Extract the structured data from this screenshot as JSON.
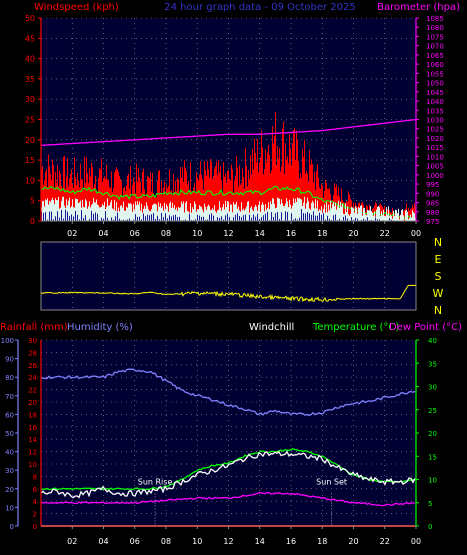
{
  "chart_data": [
    {
      "type": "line",
      "title": "24 hour graph data - 09 October 2025",
      "left_label": "Windspeed (kph)",
      "right_label": "Barometer (hpa)",
      "y_left": {
        "min": 0,
        "max": 50,
        "ticks": [
          0,
          5,
          10,
          15,
          20,
          25,
          30,
          35,
          40,
          45,
          50
        ]
      },
      "y_right": {
        "min": 975,
        "max": 1085,
        "ticks": [
          975,
          980,
          985,
          990,
          995,
          1000,
          1005,
          1010,
          1015,
          1020,
          1025,
          1030,
          1035,
          1040,
          1045,
          1050,
          1055,
          1060,
          1065,
          1070,
          1075,
          1080,
          1085
        ]
      },
      "x_tick_labels": [
        "02",
        "04",
        "06",
        "08",
        "10",
        "12",
        "14",
        "16",
        "18",
        "20",
        "22",
        "00"
      ],
      "series": [
        {
          "key": "gust",
          "color": "#ff0000",
          "x": [
            0,
            1,
            2,
            3,
            4,
            5,
            6,
            7,
            8,
            9,
            10,
            11,
            12,
            13,
            14,
            15,
            16,
            17,
            18,
            19,
            20,
            21,
            22,
            23,
            24
          ],
          "values": [
            14,
            13,
            12,
            13,
            12,
            10,
            11,
            10,
            11,
            12,
            12,
            12,
            11,
            14,
            18,
            22,
            19,
            15,
            9,
            7,
            5,
            4,
            3,
            2,
            6
          ]
        },
        {
          "key": "wind_avg",
          "color": "#00ff00",
          "x": [
            0,
            1,
            2,
            3,
            4,
            5,
            6,
            7,
            8,
            9,
            10,
            11,
            12,
            13,
            14,
            15,
            16,
            17,
            18,
            19,
            20,
            21,
            22,
            23,
            24
          ],
          "values": [
            8,
            8,
            7,
            8,
            7,
            6,
            6,
            6,
            7,
            7,
            7,
            7,
            7,
            7,
            7,
            8,
            8,
            7,
            5,
            4,
            3,
            2,
            2,
            1,
            1
          ]
        },
        {
          "key": "wind_min",
          "color": "#ffffff",
          "x": [
            0,
            1,
            2,
            3,
            4,
            5,
            6,
            7,
            8,
            9,
            10,
            11,
            12,
            13,
            14,
            15,
            16,
            17,
            18,
            19,
            20,
            21,
            22,
            23,
            24
          ],
          "values": [
            3,
            3,
            3,
            3,
            3,
            2,
            2,
            2,
            2,
            2,
            2,
            2,
            2,
            2,
            2,
            3,
            3,
            3,
            2,
            2,
            1,
            1,
            1,
            0,
            0
          ]
        },
        {
          "key": "barometer",
          "color": "#ff00ff",
          "axis": "right",
          "x": [
            0,
            2,
            4,
            6,
            8,
            10,
            12,
            14,
            16,
            18,
            20,
            22,
            24
          ],
          "values": [
            1016,
            1017,
            1018,
            1019,
            1020,
            1021,
            1022,
            1022,
            1023,
            1024,
            1026,
            1028,
            1030
          ]
        }
      ]
    },
    {
      "type": "line",
      "direction_labels": [
        "N",
        "E",
        "S",
        "W",
        "N"
      ],
      "x_tick_labels": [
        "02",
        "04",
        "06",
        "08",
        "10",
        "12",
        "14",
        "16",
        "18",
        "20",
        "22",
        "00"
      ],
      "series": [
        {
          "key": "wind_direction",
          "color": "#ffff00",
          "x": [
            0,
            2,
            4,
            6,
            7,
            8,
            10,
            12,
            14,
            16,
            18,
            20,
            22,
            23,
            23.5,
            24
          ],
          "values": [
            270,
            268,
            270,
            275,
            266,
            278,
            270,
            276,
            290,
            300,
            305,
            300,
            300,
            300,
            230,
            230
          ]
        }
      ]
    },
    {
      "type": "line",
      "rainfall_label": "Rainfall (mm)",
      "humidity_label": "Humidity (%)",
      "windchill_label": "Windchill",
      "temperature_label": "Temperature (°C)",
      "dewpoint_label": "Dew Point (°C)",
      "y_humidity": {
        "min": 0,
        "max": 100,
        "ticks": [
          0,
          10,
          20,
          30,
          40,
          50,
          60,
          70,
          80,
          90,
          100
        ]
      },
      "y_rain": {
        "min": 0,
        "max": 30,
        "ticks": [
          0,
          2,
          4,
          6,
          8,
          10,
          12,
          14,
          16,
          18,
          20,
          22,
          24,
          26,
          28,
          30
        ]
      },
      "y_temp": {
        "min": 0,
        "max": 40,
        "ticks": [
          0,
          5,
          10,
          15,
          20,
          25,
          30,
          35,
          40
        ]
      },
      "x_tick_labels": [
        "02",
        "04",
        "06",
        "08",
        "10",
        "12",
        "14",
        "16",
        "18",
        "20",
        "22",
        "00"
      ],
      "sunrise_label": "Sun Rise",
      "sunset_label": "Sun Set",
      "sunrise_hour": 7.3,
      "sunset_hour": 18.6,
      "series": [
        {
          "key": "humidity",
          "color": "#8080ff",
          "axis": "humidity",
          "x": [
            0,
            2,
            4,
            5,
            6,
            7,
            8,
            9,
            10,
            11,
            12,
            13,
            14,
            15,
            16,
            17,
            18,
            19,
            20,
            21,
            22,
            23,
            24
          ],
          "values": [
            80,
            80,
            80,
            83,
            84,
            83,
            78,
            73,
            70,
            68,
            65,
            63,
            60,
            62,
            60,
            60,
            61,
            64,
            66,
            67,
            69,
            71,
            73
          ]
        },
        {
          "key": "temperature",
          "color": "#00ff00",
          "axis": "temp",
          "x": [
            0,
            2,
            4,
            5,
            6,
            7,
            8,
            9,
            10,
            11,
            12,
            13,
            14,
            15,
            16,
            17,
            18,
            19,
            20,
            21,
            22,
            23,
            24
          ],
          "values": [
            8,
            8,
            8,
            8,
            8,
            8,
            8.5,
            10,
            12,
            13,
            13.5,
            15,
            16,
            16,
            16.5,
            16,
            15,
            13,
            11,
            10,
            9.5,
            9.5,
            10
          ]
        },
        {
          "key": "windchill",
          "color": "#ffffff",
          "axis": "temp",
          "x": [
            0,
            1,
            2,
            3,
            4,
            5,
            6,
            7,
            8,
            9,
            10,
            11,
            12,
            13,
            14,
            15,
            16,
            17,
            18,
            19,
            20,
            21,
            22,
            23,
            24
          ],
          "values": [
            7,
            7.5,
            6.5,
            7,
            8,
            7,
            7,
            7.5,
            8,
            9.5,
            11,
            12,
            13,
            14.5,
            15.5,
            15.5,
            15.5,
            15,
            14.5,
            12.5,
            11,
            10,
            9.5,
            9.5,
            10
          ]
        },
        {
          "key": "dew_point",
          "color": "#ff00ff",
          "axis": "temp",
          "x": [
            0,
            2,
            4,
            6,
            8,
            10,
            12,
            14,
            16,
            18,
            20,
            22,
            24
          ],
          "values": [
            5,
            5,
            5,
            5,
            5.5,
            6,
            6,
            7,
            7,
            6,
            5,
            4.5,
            5
          ]
        },
        {
          "key": "rainfall",
          "color": "#ff0000",
          "axis": "rain",
          "x": [
            0,
            24
          ],
          "values": [
            0,
            0
          ]
        }
      ]
    }
  ]
}
